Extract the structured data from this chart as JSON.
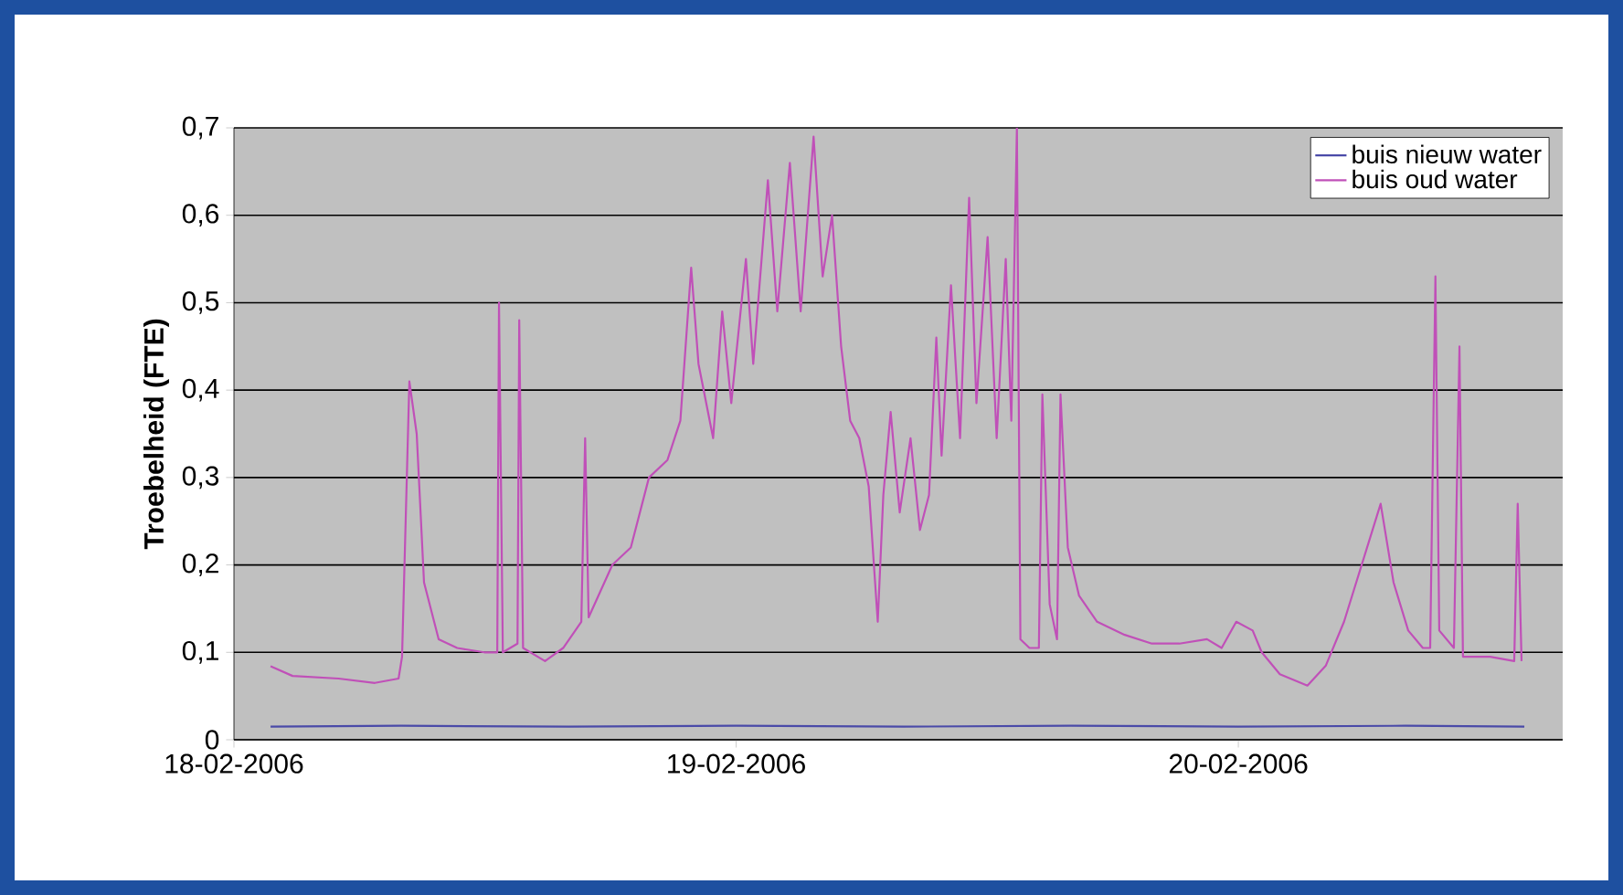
{
  "chart_data": {
    "type": "line",
    "ylabel": "Troebelheid (FTE)",
    "xlim": [
      "2006-02-18T00:00",
      "2006-02-20T15:30"
    ],
    "xticks": [
      {
        "value": "2006-02-18",
        "label": "18-02-2006"
      },
      {
        "value": "2006-02-19",
        "label": "19-02-2006"
      },
      {
        "value": "2006-02-20",
        "label": "20-02-2006"
      }
    ],
    "ylim": [
      0,
      0.7
    ],
    "yticks": [
      0,
      {
        "value": 0.1,
        "label": "0,1"
      },
      {
        "value": 0.2,
        "label": "0,2"
      },
      {
        "value": 0.3,
        "label": "0,3"
      },
      {
        "value": 0.4,
        "label": "0,4"
      },
      {
        "value": 0.5,
        "label": "0,5"
      },
      {
        "value": 0.6,
        "label": "0,6"
      },
      {
        "value": 0.7,
        "label": "0,7"
      }
    ],
    "grid": "y",
    "legend": "top right",
    "marker": "none",
    "line_style": "solid",
    "series": [
      {
        "name": "buis nieuw water",
        "color": "#4a4aa8",
        "x": [
          "2006-02-18T01:45",
          "2006-02-18T08:00",
          "2006-02-18T16:00",
          "2006-02-19T00:00",
          "2006-02-19T08:00",
          "2006-02-19T16:00",
          "2006-02-20T00:00",
          "2006-02-20T08:00",
          "2006-02-20T13:40"
        ],
        "values": [
          0.015,
          0.016,
          0.015,
          0.016,
          0.015,
          0.016,
          0.015,
          0.016,
          0.015
        ]
      },
      {
        "name": "buis oud water",
        "color": "#c050b8",
        "x": [
          "2006-02-18T01:45",
          "2006-02-18T02:48",
          "2006-02-18T05:00",
          "2006-02-18T06:44",
          "2006-02-18T07:52",
          "2006-02-18T08:02",
          "2006-02-18T08:23",
          "2006-02-18T08:44",
          "2006-02-18T09:05",
          "2006-02-18T09:47",
          "2006-02-18T10:40",
          "2006-02-18T11:58",
          "2006-02-18T12:35",
          "2006-02-18T12:40",
          "2006-02-18T12:51",
          "2006-02-18T13:33",
          "2006-02-18T13:38",
          "2006-02-18T13:49",
          "2006-02-18T14:52",
          "2006-02-18T15:44",
          "2006-02-18T16:36",
          "2006-02-18T16:47",
          "2006-02-18T16:57",
          "2006-02-18T18:05",
          "2006-02-18T18:58",
          "2006-02-18T19:50",
          "2006-02-18T20:43",
          "2006-02-18T21:20",
          "2006-02-18T21:51",
          "2006-02-18T22:12",
          "2006-02-18T22:54",
          "2006-02-18T23:20",
          "2006-02-18T23:46",
          "2006-02-19T00:28",
          "2006-02-19T00:49",
          "2006-02-19T01:31",
          "2006-02-19T01:58",
          "2006-02-19T02:34",
          "2006-02-19T03:05",
          "2006-02-19T03:42",
          "2006-02-19T04:08",
          "2006-02-19T04:35",
          "2006-02-19T05:01",
          "2006-02-19T05:27",
          "2006-02-19T05:53",
          "2006-02-19T06:20",
          "2006-02-19T06:35",
          "2006-02-19T06:46",
          "2006-02-19T07:02",
          "2006-02-19T07:23",
          "2006-02-19T07:49",
          "2006-02-19T08:20",
          "2006-02-19T08:47",
          "2006-02-19T09:13",
          "2006-02-19T09:34",
          "2006-02-19T09:49",
          "2006-02-19T10:16",
          "2006-02-19T10:42",
          "2006-02-19T11:08",
          "2006-02-19T11:29",
          "2006-02-19T12:01",
          "2006-02-19T12:27",
          "2006-02-19T12:53",
          "2006-02-19T13:09",
          "2006-02-19T13:25",
          "2006-02-19T13:35",
          "2006-02-19T14:01",
          "2006-02-19T14:28",
          "2006-02-19T14:38",
          "2006-02-19T14:59",
          "2006-02-19T15:20",
          "2006-02-19T15:30",
          "2006-02-19T15:51",
          "2006-02-19T16:23",
          "2006-02-19T17:15",
          "2006-02-19T18:34",
          "2006-02-19T19:52",
          "2006-02-19T21:11",
          "2006-02-19T22:30",
          "2006-02-19T23:12",
          "2006-02-19T23:54",
          "2006-02-20T00:41",
          "2006-02-20T01:07",
          "2006-02-20T01:59",
          "2006-02-20T03:18",
          "2006-02-20T04:11",
          "2006-02-20T05:03",
          "2006-02-20T06:48",
          "2006-02-20T07:25",
          "2006-02-20T08:07",
          "2006-02-20T08:49",
          "2006-02-20T09:10",
          "2006-02-20T09:25",
          "2006-02-20T09:36",
          "2006-02-20T10:18",
          "2006-02-20T10:34",
          "2006-02-20T10:44",
          "2006-02-20T12:02",
          "2006-02-20T13:11",
          "2006-02-20T13:21",
          "2006-02-20T13:32"
        ],
        "values": [
          0.084,
          0.073,
          0.07,
          0.065,
          0.07,
          0.095,
          0.41,
          0.35,
          0.18,
          0.115,
          0.105,
          0.1,
          0.1,
          0.5,
          0.1,
          0.11,
          0.48,
          0.105,
          0.09,
          0.105,
          0.135,
          0.345,
          0.14,
          0.2,
          0.22,
          0.3,
          0.32,
          0.365,
          0.54,
          0.43,
          0.345,
          0.49,
          0.385,
          0.55,
          0.43,
          0.64,
          0.49,
          0.66,
          0.49,
          0.69,
          0.53,
          0.6,
          0.45,
          0.365,
          0.345,
          0.29,
          0.2,
          0.135,
          0.28,
          0.375,
          0.26,
          0.345,
          0.24,
          0.28,
          0.46,
          0.325,
          0.52,
          0.345,
          0.62,
          0.385,
          0.575,
          0.345,
          0.55,
          0.365,
          0.7,
          0.115,
          0.105,
          0.105,
          0.395,
          0.155,
          0.115,
          0.395,
          0.22,
          0.165,
          0.135,
          0.12,
          0.11,
          0.11,
          0.115,
          0.105,
          0.135,
          0.125,
          0.1,
          0.075,
          0.062,
          0.085,
          0.135,
          0.27,
          0.18,
          0.125,
          0.105,
          0.105,
          0.53,
          0.125,
          0.105,
          0.45,
          0.095,
          0.095,
          0.09,
          0.27,
          0.09
        ]
      }
    ]
  }
}
